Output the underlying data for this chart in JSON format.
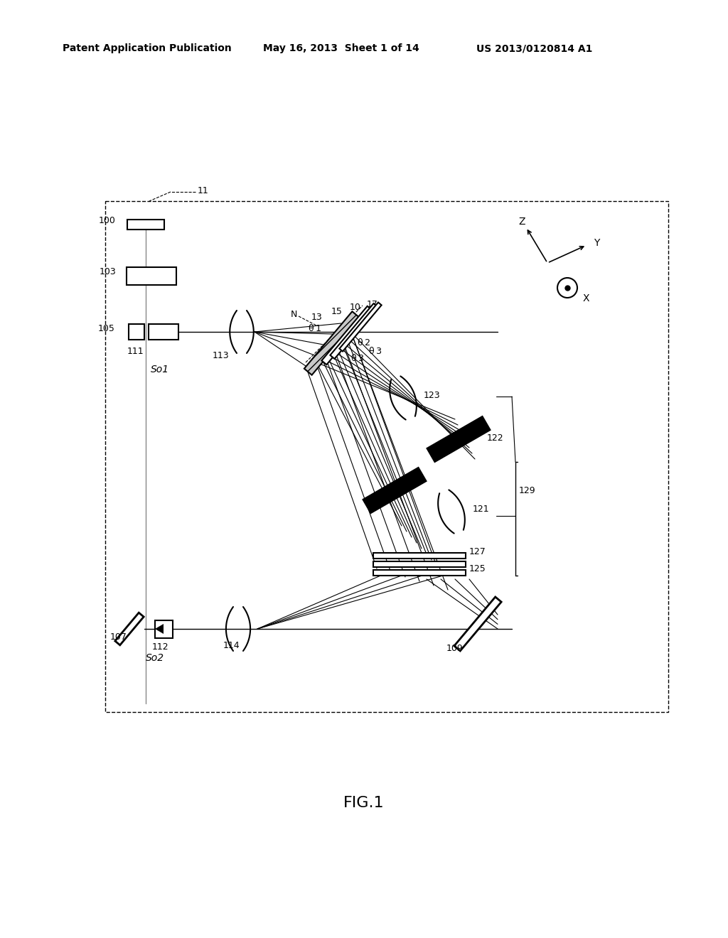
{
  "header_left": "Patent Application Publication",
  "header_mid": "May 16, 2013  Sheet 1 of 14",
  "header_right": "US 2013/0120814 A1",
  "figure_label": "FIG.1",
  "bg_color": "#ffffff"
}
